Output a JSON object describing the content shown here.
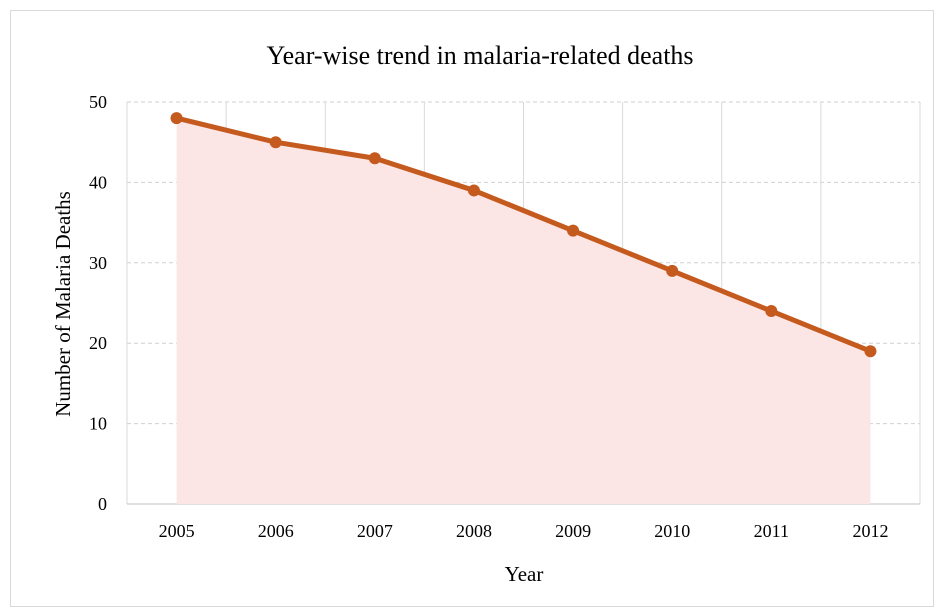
{
  "chart_data": {
    "type": "area",
    "title": "Year-wise trend in malaria-related deaths",
    "xlabel": "Year",
    "ylabel": "Number of Malaria Deaths",
    "categories": [
      "2005",
      "2006",
      "2007",
      "2008",
      "2009",
      "2010",
      "2011",
      "2012"
    ],
    "series": [
      {
        "values": [
          48,
          45,
          43,
          39,
          34,
          29,
          24,
          19
        ]
      }
    ],
    "ylim": [
      0,
      50
    ],
    "yticks": [
      "0",
      "10",
      "20",
      "30",
      "40",
      "50"
    ],
    "grid": true,
    "legend": "none",
    "colors": {
      "line": "#C55A1E",
      "fill": "#FBE5E5",
      "grid": "#D0D0D0"
    }
  }
}
